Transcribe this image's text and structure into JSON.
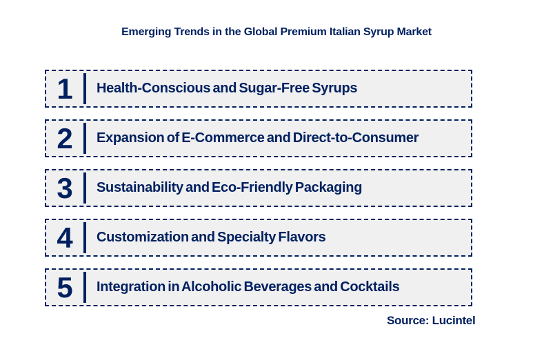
{
  "title": {
    "text": "Emerging Trends in the Global Premium Italian Syrup Market"
  },
  "trends": [
    {
      "number": "1",
      "label": "Health-Conscious and Sugar-Free Syrups"
    },
    {
      "number": "2",
      "label": "Expansion of E-Commerce and Direct-to-Consumer"
    },
    {
      "number": "3",
      "label": "Sustainability and Eco-Friendly Packaging"
    },
    {
      "number": "4",
      "label": "Customization and Specialty Flavors"
    },
    {
      "number": "5",
      "label": "Integration in Alcoholic Beverages and Cocktails"
    }
  ],
  "source": {
    "text": "Source: Lucintel"
  },
  "colors": {
    "navy_text": "#002060",
    "dashed_border": "#002060",
    "row_background": "#F0F0F0",
    "page_background": "#FFFFFF"
  }
}
